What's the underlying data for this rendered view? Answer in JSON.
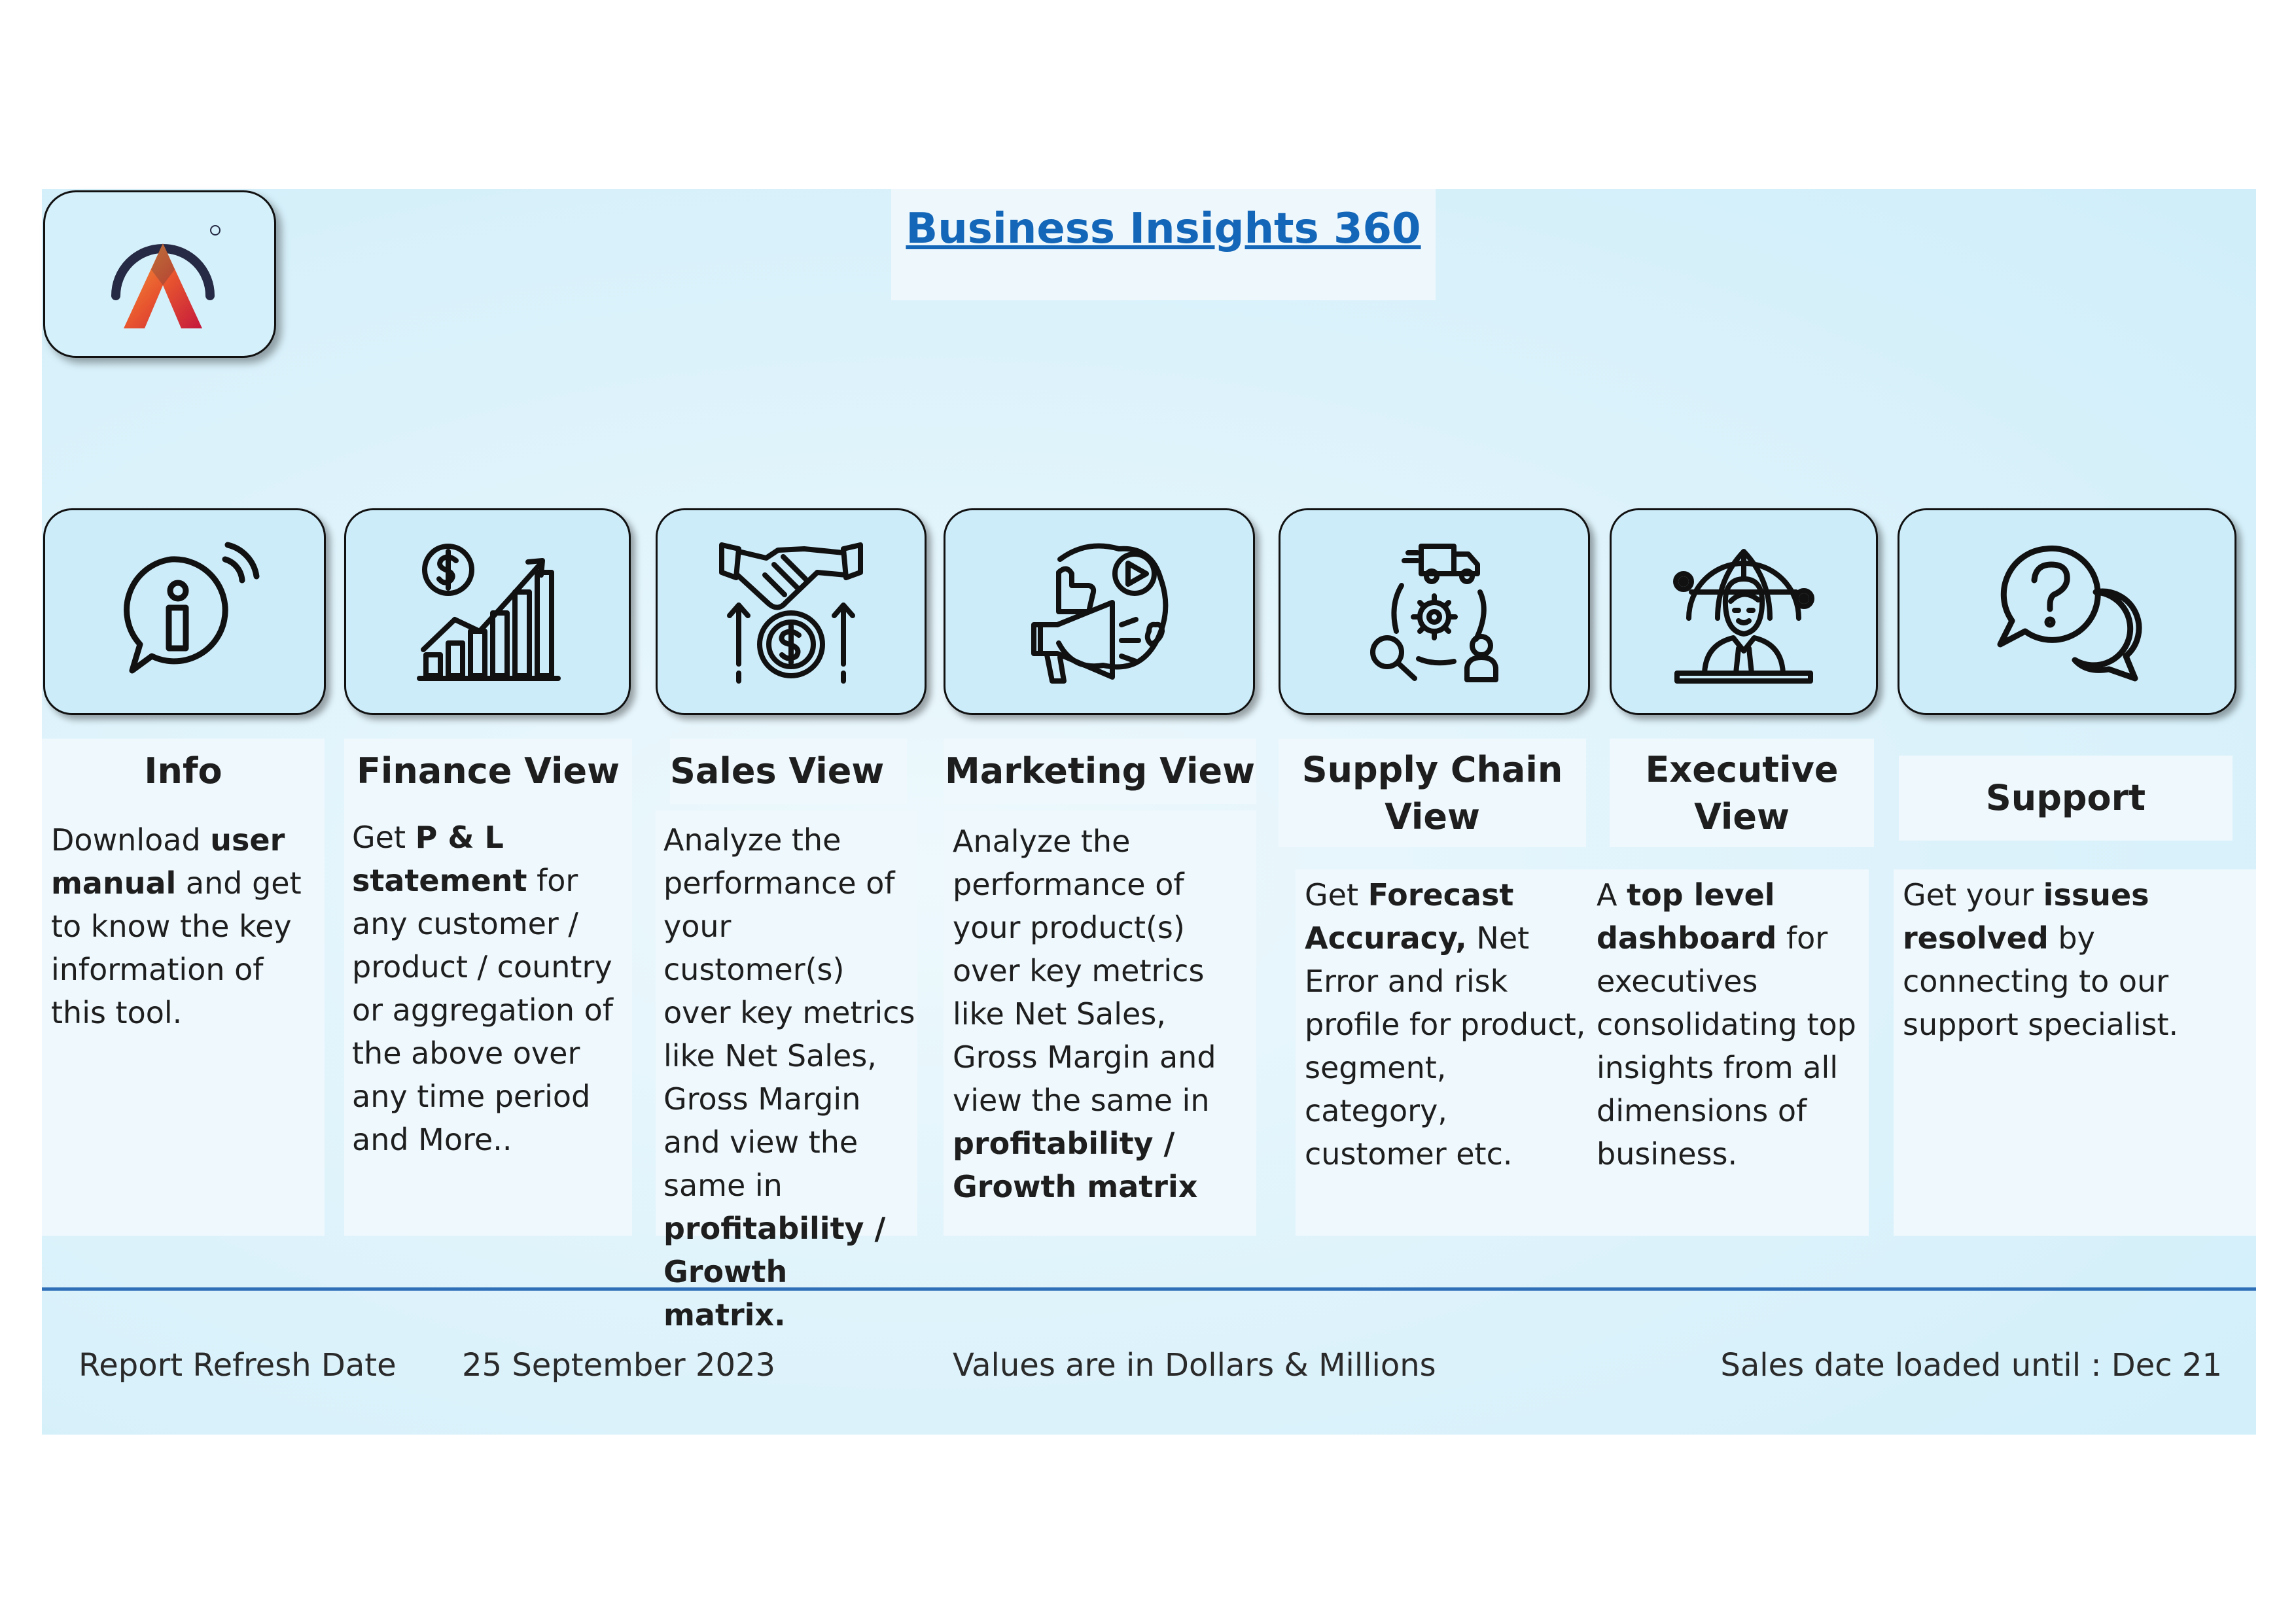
{
  "title": "Business Insights 360",
  "logo": {
    "icon": "atliq-a-logo-icon",
    "colors": [
      "#f3a13a",
      "#e8562f",
      "#c4183c",
      "#262a44"
    ]
  },
  "cards": [
    {
      "id": "info",
      "icon": "info-bubble-icon",
      "title": "Info",
      "text": [
        [
          "Download ",
          false
        ],
        [
          "user manual",
          true
        ],
        [
          " and get to know the key information of this tool.",
          false
        ]
      ]
    },
    {
      "id": "finance",
      "icon": "finance-growth-chart-icon",
      "title": "Finance View",
      "text": [
        [
          "Get  ",
          false
        ],
        [
          "P & L statement",
          true
        ],
        [
          " for any customer / product / country or aggregation of the above over any time period and More..",
          false
        ]
      ]
    },
    {
      "id": "sales",
      "icon": "handshake-money-icon",
      "title": "Sales View",
      "text": [
        [
          "Analyze the performance of your customer(s) over key metrics like Net Sales, Gross Margin and view the same in ",
          false
        ],
        [
          "profitability / Growth matrix.",
          true
        ]
      ]
    },
    {
      "id": "marketing",
      "icon": "megaphone-social-icon",
      "title": "Marketing View",
      "text": [
        [
          "Analyze the performance of your product(s) over key metrics like Net Sales, Gross Margin and view the same in ",
          false
        ],
        [
          "profitability / Growth matrix",
          true
        ]
      ]
    },
    {
      "id": "supply",
      "icon": "supply-chain-truck-icon",
      "title": "Supply Chain View",
      "text": [
        [
          "Get ",
          false
        ],
        [
          "Forecast Accuracy,",
          true
        ],
        [
          " Net Error and risk profile for product, segment, category, customer etc.",
          false
        ]
      ]
    },
    {
      "id": "executive",
      "icon": "executive-globe-icon",
      "title": "Executive View",
      "text": [
        [
          "A ",
          false
        ],
        [
          "top level dashboard",
          true
        ],
        [
          " for executives consolidating top insights from all dimensions of business.",
          false
        ]
      ]
    },
    {
      "id": "support",
      "icon": "support-chat-question-icon",
      "title": "Support",
      "text": [
        [
          "Get your ",
          false
        ],
        [
          "issues resolved",
          true
        ],
        [
          " by connecting to our support specialist.",
          false
        ]
      ]
    }
  ],
  "footer": {
    "refresh_label": "Report Refresh Date",
    "refresh_date": "25 September 2023",
    "units_note": "Values are in Dollars & Millions",
    "sales_loaded": "Sales date loaded until : Dec 21"
  },
  "colors": {
    "title": "#1466b8",
    "divider": "#2f6fb8",
    "card_bg": "#ccecfa"
  }
}
